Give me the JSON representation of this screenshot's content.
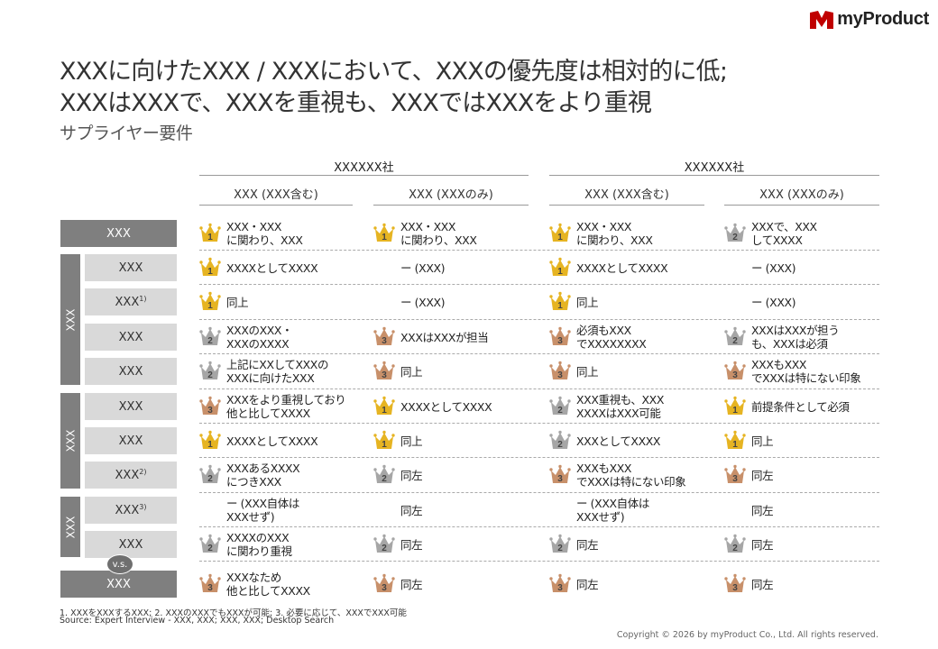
{
  "brand": {
    "name": "myProduct",
    "color": "#c00000"
  },
  "title": {
    "line1": "XXXに向けたXXX / XXXにおいて、XXXの優先度は相対的に低;",
    "line2": "XXXはXXXで、XXXを重視も、XXXではXXXをより重視"
  },
  "subtitle": "サプライヤー要件",
  "companies": [
    "XXXXXX社",
    "XXXXXX社"
  ],
  "column_headers": [
    "XXX (XXX含む)",
    "XXX (XXXのみ)",
    "XXX (XXX含む)",
    "XXX (XXXのみ)"
  ],
  "groups": [
    "XXX",
    "XXX",
    "XXX"
  ],
  "vs_label": "v.s.",
  "rows": [
    {
      "label": "XXX",
      "sup": "",
      "cells": [
        {
          "rank": 1,
          "text": "XXX・XXX\nに関わり、XXX"
        },
        {
          "rank": 1,
          "text": "XXX・XXX\nに関わり、XXX"
        },
        {
          "rank": 1,
          "text": "XXX・XXX\nに関わり、XXX"
        },
        {
          "rank": 2,
          "text": "XXXで、XXX\nしてXXXX"
        }
      ]
    },
    {
      "label": "XXX",
      "sup": "",
      "cells": [
        {
          "rank": 1,
          "text": "XXXXとしてXXXX"
        },
        {
          "rank": 0,
          "text": "ー (XXX)"
        },
        {
          "rank": 1,
          "text": "XXXXとしてXXXX"
        },
        {
          "rank": 0,
          "text": "ー (XXX)"
        }
      ]
    },
    {
      "label": "XXX ",
      "sup": "1)",
      "cells": [
        {
          "rank": 1,
          "text": "同上"
        },
        {
          "rank": 0,
          "text": "ー (XXX)"
        },
        {
          "rank": 1,
          "text": "同上"
        },
        {
          "rank": 0,
          "text": "ー (XXX)"
        }
      ]
    },
    {
      "label": "XXX",
      "sup": "",
      "cells": [
        {
          "rank": 2,
          "text": "XXXのXXX・\nXXXのXXXX"
        },
        {
          "rank": 3,
          "text": "XXXはXXXが担当"
        },
        {
          "rank": 3,
          "text": "必須もXXX\nでXXXXXXXX"
        },
        {
          "rank": 2,
          "text": "XXXはXXXが担う\nも、XXXは必須"
        }
      ]
    },
    {
      "label": "XXX",
      "sup": "",
      "cells": [
        {
          "rank": 2,
          "text": "上記にXXしてXXXの\nXXXに向けたXXX"
        },
        {
          "rank": 3,
          "text": "同上"
        },
        {
          "rank": 3,
          "text": "同上"
        },
        {
          "rank": 3,
          "text": "XXXもXXX\nでXXXは特にない印象"
        }
      ]
    },
    {
      "label": "XXX",
      "sup": "",
      "cells": [
        {
          "rank": 3,
          "text": "XXXをより重視しており\n他と比してXXXX"
        },
        {
          "rank": 1,
          "text": "XXXXとしてXXXX"
        },
        {
          "rank": 2,
          "text": "XXX重視も、XXX\nXXXXはXXX可能"
        },
        {
          "rank": 1,
          "text": "前提条件として必須"
        }
      ]
    },
    {
      "label": "XXX",
      "sup": "",
      "cells": [
        {
          "rank": 1,
          "text": "XXXXとしてXXXX"
        },
        {
          "rank": 1,
          "text": "同上"
        },
        {
          "rank": 2,
          "text": "XXXとしてXXXX"
        },
        {
          "rank": 1,
          "text": "同上"
        }
      ]
    },
    {
      "label": "XXX",
      "sup": "2)",
      "cells": [
        {
          "rank": 2,
          "text": "XXXあるXXXX\nにつきXXX"
        },
        {
          "rank": 2,
          "text": "同左"
        },
        {
          "rank": 3,
          "text": "XXXもXXX\nでXXXは特にない印象"
        },
        {
          "rank": 3,
          "text": "同左"
        }
      ]
    },
    {
      "label": "XXX",
      "sup": "3)",
      "cells": [
        {
          "rank": 0,
          "text": "ー (XXX自体は\nXXXせず)"
        },
        {
          "rank": 0,
          "text": "同左"
        },
        {
          "rank": 0,
          "text": "ー (XXX自体は\nXXXせず)"
        },
        {
          "rank": 0,
          "text": "同左"
        }
      ]
    },
    {
      "label": "XXX",
      "sup": "",
      "cells": [
        {
          "rank": 2,
          "text": "XXXXのXXX\nに関わり重視"
        },
        {
          "rank": 2,
          "text": "同左"
        },
        {
          "rank": 2,
          "text": "同左"
        },
        {
          "rank": 2,
          "text": "同左"
        }
      ]
    },
    {
      "label": "XXX",
      "sup": "",
      "cells": [
        {
          "rank": 3,
          "text": "XXXなため\n他と比してXXXX"
        },
        {
          "rank": 3,
          "text": "同左"
        },
        {
          "rank": 3,
          "text": "同左"
        },
        {
          "rank": 3,
          "text": "同左"
        }
      ]
    }
  ],
  "rank_colors": {
    "1": "#e6b422",
    "2": "#a6a6a6",
    "3": "#c8906a"
  },
  "footnote": "1. XXXをXXXするXXX;  2. XXXのXXXでもXXXが可能; 3. 必要に応じて、XXXでXXX可能",
  "source": "Source: Expert Interview - XXX, XXX; XXX, XXX; Desktop Search",
  "copyright": "Copyright © 2026 by myProduct Co., Ltd.  All rights reserved."
}
